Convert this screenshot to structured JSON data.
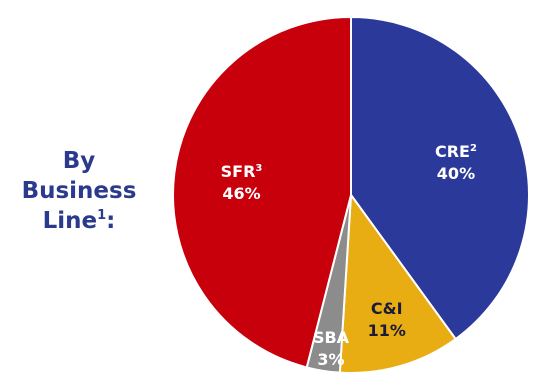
{
  "side_title": {
    "line1": "By",
    "line2": "Business",
    "line3": "Line",
    "line3_sup": "1",
    "line3_suffix": ":"
  },
  "colors": {
    "SFR": "#c8000c",
    "CRE": "#2b3a9a",
    "C&I": "#e8ad12",
    "SBA": "#8c8c8c",
    "title": "#2b3a8c"
  },
  "chart_data": {
    "type": "pie",
    "title": "",
    "slices": [
      {
        "name": "CRE",
        "sup": "2",
        "value": 40,
        "label": "40%",
        "color": "#2b3a9a",
        "label_color": "light"
      },
      {
        "name": "C&I",
        "sup": "",
        "value": 11,
        "label": "11%",
        "color": "#e8ad12",
        "label_color": "dark"
      },
      {
        "name": "SBA",
        "sup": "",
        "value": 3,
        "label": "3%",
        "color": "#8c8c8c",
        "label_color": "light"
      },
      {
        "name": "SFR",
        "sup": "3",
        "value": 46,
        "label": "46%",
        "color": "#c8000c",
        "label_color": "light"
      }
    ],
    "start_angle": "12 o'clock",
    "direction": "clockwise",
    "legend": "none"
  }
}
